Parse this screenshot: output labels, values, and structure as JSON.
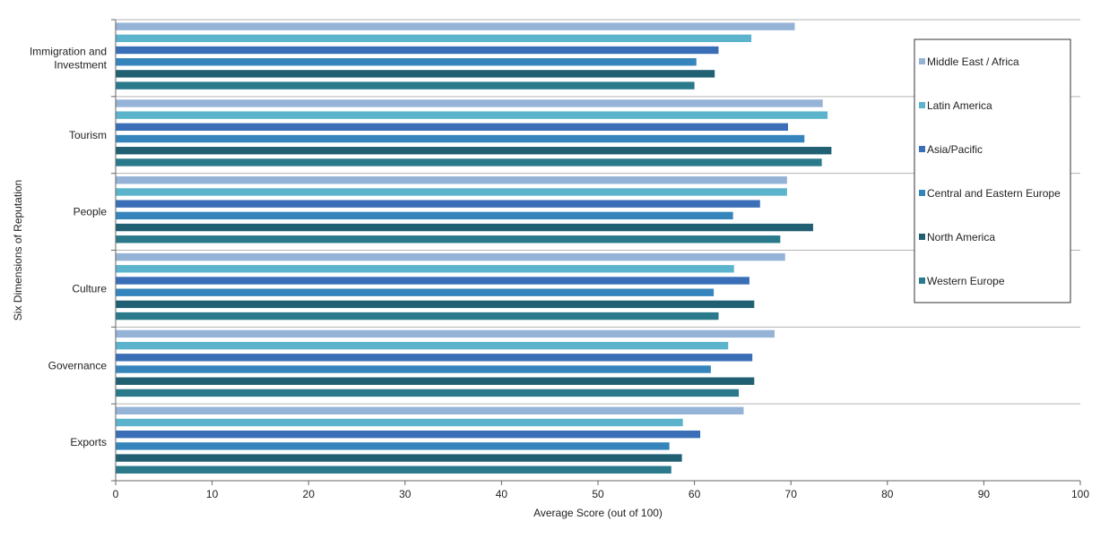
{
  "chart_data": {
    "type": "bar",
    "orientation": "horizontal",
    "title": "",
    "xlabel": "Average Score (out of 100)",
    "ylabel": "Six Dimensions of Reputation",
    "xlim": [
      0,
      100
    ],
    "x_ticks": [
      "0",
      "10",
      "20",
      "30",
      "40",
      "50",
      "60",
      "70",
      "80",
      "90",
      "100"
    ],
    "categories": [
      "Immigration and Investment",
      "Tourism",
      "People",
      "Culture",
      "Governance",
      "Exports"
    ],
    "category_lines": [
      [
        "Immigration and",
        "Investment"
      ],
      [
        "Tourism"
      ],
      [
        "People"
      ],
      [
        "Culture"
      ],
      [
        "Governance"
      ],
      [
        "Exports"
      ]
    ],
    "grid": "horizontal separators between categories",
    "legend_position": "right",
    "series": [
      {
        "name": "Middle East / Africa",
        "color": "#95b3d7",
        "values": [
          70.4,
          73.3,
          69.6,
          69.4,
          68.3,
          65.1
        ]
      },
      {
        "name": "Latin America",
        "color": "#5bb4cc",
        "values": [
          65.9,
          73.8,
          69.6,
          64.1,
          63.5,
          58.8
        ]
      },
      {
        "name": "Asia/Pacific",
        "color": "#3a6fb8",
        "values": [
          62.5,
          69.7,
          66.8,
          65.7,
          66.0,
          60.6
        ]
      },
      {
        "name": "Central and Eastern Europe",
        "color": "#3585bc",
        "values": [
          60.2,
          71.4,
          64.0,
          62.0,
          61.7,
          57.4
        ]
      },
      {
        "name": "North America",
        "color": "#215f73",
        "values": [
          62.1,
          74.2,
          72.3,
          66.2,
          66.2,
          58.7
        ]
      },
      {
        "name": "Western Europe",
        "color": "#2a7a8c",
        "values": [
          60.0,
          73.2,
          68.9,
          62.5,
          64.6,
          57.6
        ]
      }
    ]
  }
}
